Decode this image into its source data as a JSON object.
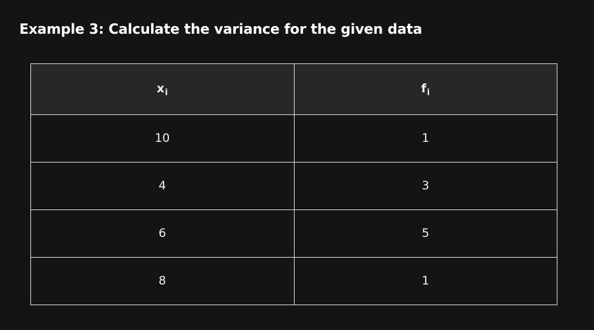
{
  "title": "Example 3: Calculate the variance for the given data",
  "table": {
    "headers": [
      {
        "base": "x",
        "sub": "i"
      },
      {
        "base": "f",
        "sub": "i"
      }
    ],
    "rows": [
      [
        "10",
        "1"
      ],
      [
        "4",
        "3"
      ],
      [
        "6",
        "5"
      ],
      [
        "8",
        "1"
      ]
    ]
  }
}
